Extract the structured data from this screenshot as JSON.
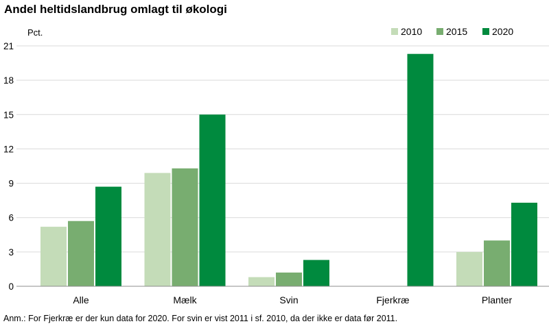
{
  "chart_data": {
    "type": "bar",
    "title": "Andel heltidslandbrug omlagt til økologi",
    "ylabel": "Pct.",
    "xlabel": "",
    "ylim": [
      0,
      21
    ],
    "yticks": [
      0,
      3,
      6,
      9,
      12,
      15,
      18,
      21
    ],
    "grid": true,
    "legend_position": "top-right",
    "categories": [
      "Alle",
      "Mælk",
      "Svin",
      "Fjerkræ",
      "Planter"
    ],
    "series": [
      {
        "name": "2010",
        "color": "#c4dcb8",
        "values": [
          5.2,
          9.9,
          0.8,
          null,
          3.0
        ]
      },
      {
        "name": "2015",
        "color": "#78ad70",
        "values": [
          5.7,
          10.3,
          1.2,
          null,
          4.0
        ]
      },
      {
        "name": "2020",
        "color": "#008a3e",
        "values": [
          8.7,
          15.0,
          2.3,
          20.3,
          7.3
        ]
      }
    ],
    "note": "Anm.: For Fjerkræ er der kun data for 2020. For svin er vist 2011 i sf. 2010, da der ikke er data før 2011."
  }
}
